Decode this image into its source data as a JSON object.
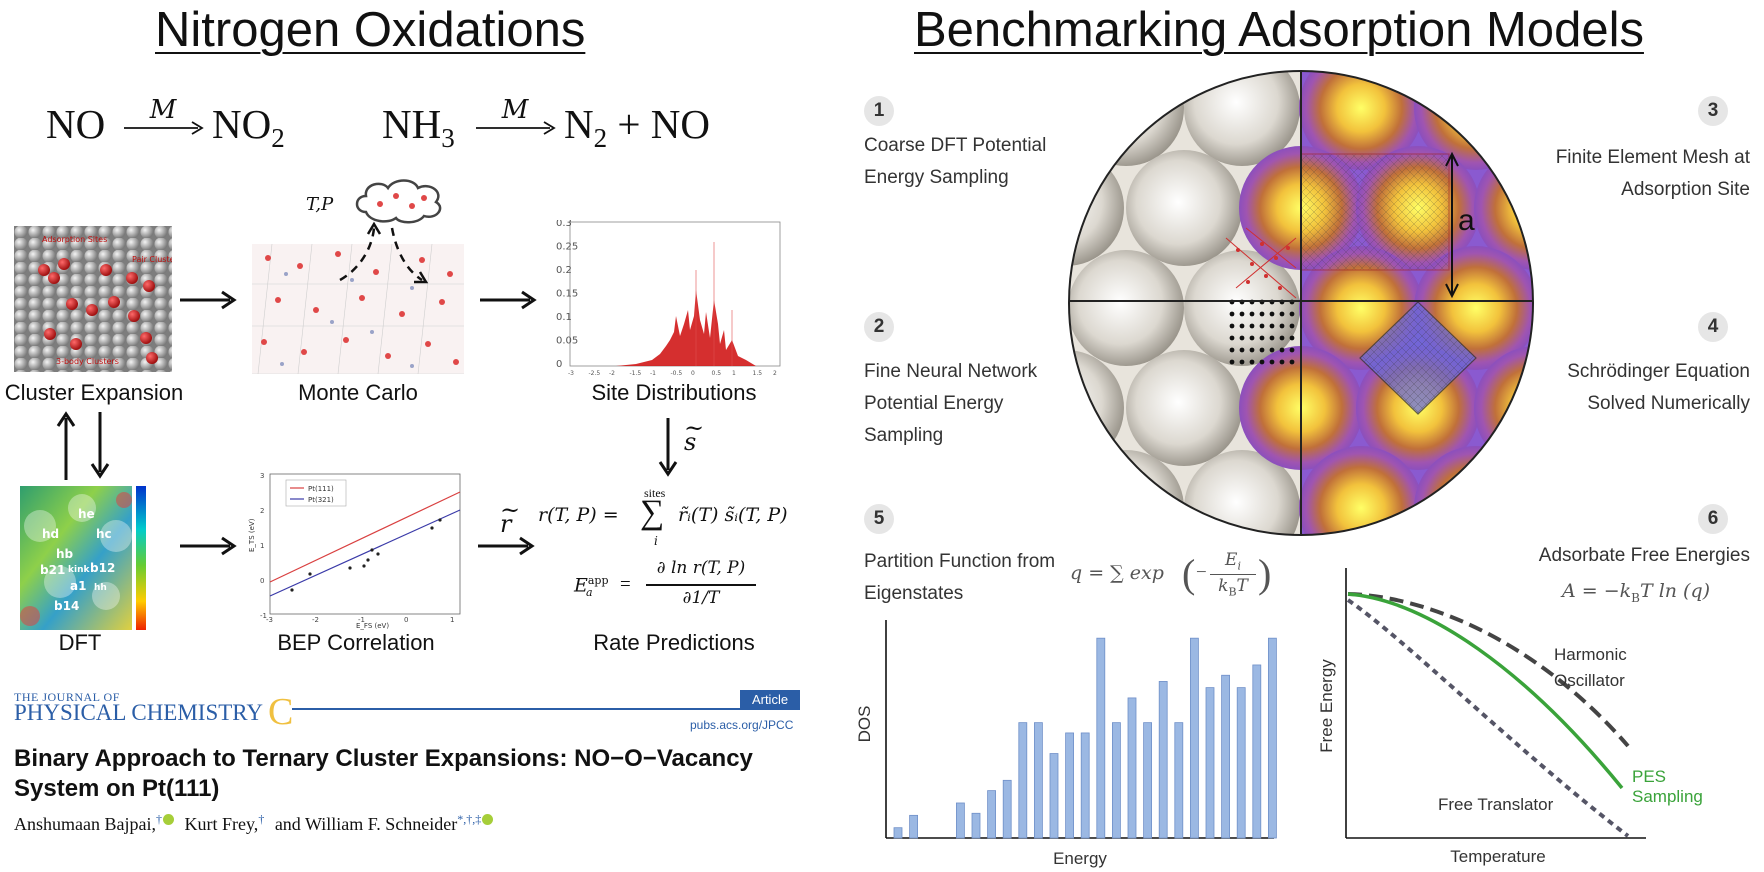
{
  "left": {
    "title": "Nitrogen Oxidations",
    "reaction1": {
      "reactant": "NO",
      "catalyst": "M",
      "product": "NO",
      "product_sub": "2"
    },
    "reaction2": {
      "reactant": "NH",
      "reactant_sub": "3",
      "catalyst": "M",
      "product": "N",
      "product_sub": "2",
      "product_tail": "+ NO"
    },
    "tp_label": "T,P",
    "captions": {
      "cluster": "Cluster Expansion",
      "montecarlo": "Monte Carlo",
      "sitedist": "Site Distributions",
      "dft": "DFT",
      "bep": "BEP Correlation",
      "rate": "Rate Predictions"
    },
    "s_tilde": "s",
    "r_tilde": "r",
    "cluster_labels": [
      "Adsorption Sites",
      "Pair Clusters",
      "3-body Clusters"
    ],
    "dft_labels": [
      "he",
      "hd",
      "hc",
      "hb",
      "b21",
      "kink",
      "b12",
      "a1",
      "b14",
      "hh"
    ],
    "sitedist_ticks": {
      "y": [
        "0.3",
        "0.25",
        "0.2",
        "0.15",
        "0.1",
        "0.05",
        "0"
      ],
      "x": [
        "-3",
        "-2.5",
        "-2",
        "-1.5",
        "-1",
        "-0.5",
        "0",
        "0.5",
        "1",
        "1.5",
        "2"
      ]
    },
    "bep_chart": {
      "legend": [
        "Pt(111)",
        "Pt(321)"
      ],
      "ylabel": "E_TS (eV)",
      "xlabel": "E_FS (eV)",
      "yticks": [
        "3",
        "2",
        "1",
        "0",
        "-1"
      ],
      "xticks": [
        "-3",
        "-2",
        "-1",
        "0",
        "1"
      ],
      "colors": {
        "pt111": "#d94040",
        "pt321": "#3a3aa8"
      }
    },
    "rate_eq1": {
      "lhs": "r(T, P) =",
      "sum_top": "sites",
      "sum_bottom": "i",
      "rhs": "r̃ᵢ(T) s̃ᵢ(T, P)"
    },
    "rate_eq2": {
      "lhs": "E",
      "sup": "app",
      "sub": "a",
      "num": "∂ ln r(T, P)",
      "den": "∂1/T"
    },
    "journal": {
      "line1": "THE JOURNAL OF",
      "line2": "PHYSICAL CHEMISTRY",
      "letter": "C",
      "article_tag": "Article",
      "url": "pubs.acs.org/JPCC",
      "paper_title_1": "Binary Approach to Ternary Cluster Expansions: NO−O−Vacancy",
      "paper_title_2": "System on Pt(111)",
      "author1": "Anshumaan Bajpai,",
      "author1_mark": "†",
      "author2": "Kurt Frey,",
      "author2_mark": "†",
      "author3": "and William F. Schneider",
      "author3_mark": "*,†,‡"
    }
  },
  "right": {
    "title": "Benchmarking Adsorption Models",
    "steps": [
      {
        "num": "1",
        "text_1": "Coarse DFT Potential",
        "text_2": "Energy Sampling",
        "text_3": ""
      },
      {
        "num": "2",
        "text_1": "Fine Neural Network",
        "text_2": "Potential Energy",
        "text_3": "Sampling"
      },
      {
        "num": "3",
        "text_1": "Finite Element Mesh at",
        "text_2": "Adsorption Site",
        "text_3": ""
      },
      {
        "num": "4",
        "text_1": "Schrödinger Equation",
        "text_2": "Solved Numerically",
        "text_3": ""
      },
      {
        "num": "5",
        "text_1": "Partition Function from",
        "text_2": "Eigenstates",
        "text_3": ""
      },
      {
        "num": "6",
        "text_1": "Adsorbate Free Energies",
        "text_2": "",
        "text_3": ""
      }
    ],
    "lattice_label": "a",
    "eq_q": {
      "lhs": "q = ∑ exp",
      "num": "E",
      "num_sub": "i",
      "den": "k",
      "den_sub": "B",
      "den_tail": "T"
    },
    "eq_A": {
      "text": "A = −k",
      "sub": "B",
      "tail": "T ln (q)"
    },
    "dos_chart": {
      "type": "bar",
      "xlabel": "Energy",
      "ylabel": "DOS",
      "color": "#9bb8e3",
      "values": [
        0.05,
        0.11,
        0.0,
        0.0,
        0.17,
        0.12,
        0.23,
        0.28,
        0.56,
        0.56,
        0.41,
        0.51,
        0.51,
        0.97,
        0.56,
        0.68,
        0.56,
        0.76,
        0.56,
        0.97,
        0.73,
        0.79,
        0.73,
        0.84,
        0.97
      ]
    },
    "free_energy_chart": {
      "type": "line",
      "xlabel": "Temperature",
      "ylabel": "Free Energy",
      "series": [
        {
          "name": "Harmonic Oscillator",
          "label_1": "Harmonic",
          "label_2": "Oscillator",
          "color": "#444444",
          "dash": "long"
        },
        {
          "name": "PES Sampling",
          "label_1": "PES",
          "label_2": "Sampling",
          "color": "#3aa33a",
          "dash": "solid"
        },
        {
          "name": "Free Translator",
          "label_1": "Free Translator",
          "label_2": "",
          "color": "#555566",
          "dash": "short"
        }
      ]
    }
  }
}
